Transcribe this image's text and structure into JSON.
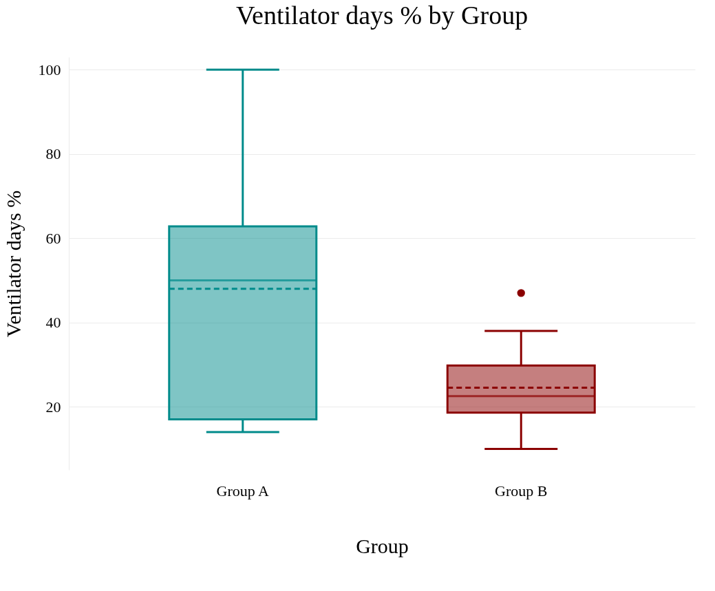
{
  "chart_data": {
    "type": "box",
    "title": "Ventilator days % by Group",
    "xlabel": "Group",
    "ylabel": "Ventilator days %",
    "categories": [
      "Group A",
      "Group B"
    ],
    "colors": [
      "#008b8b",
      "#8b0000"
    ],
    "boxes": [
      {
        "low": 14,
        "q1": 17,
        "median": 50,
        "q3": 62.8,
        "high": 100,
        "mean": 48
      },
      {
        "low": 10,
        "q1": 18.6,
        "median": 22.5,
        "q3": 29.8,
        "high": 38,
        "mean": 24.5,
        "outliers": [
          47
        ]
      }
    ],
    "ylim": [
      5,
      103
    ],
    "yticks": [
      20,
      40,
      60,
      80,
      100
    ],
    "grid": "y"
  }
}
